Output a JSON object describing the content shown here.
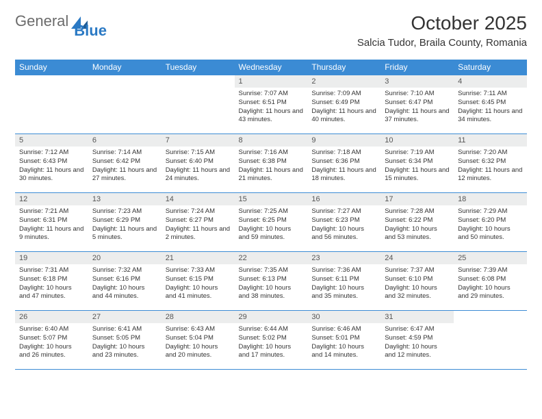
{
  "logo": {
    "text_general": "General",
    "text_blue": "Blue"
  },
  "title": "October 2025",
  "location": "Salcia Tudor, Braila County, Romania",
  "colors": {
    "header_bg": "#3b8bd4",
    "header_text": "#ffffff",
    "daynum_bg": "#eceded",
    "border": "#3b8bd4",
    "logo_gray": "#6b6b6b",
    "logo_blue": "#2a79c4"
  },
  "weekdays": [
    "Sunday",
    "Monday",
    "Tuesday",
    "Wednesday",
    "Thursday",
    "Friday",
    "Saturday"
  ],
  "weeks": [
    [
      {
        "empty": true
      },
      {
        "empty": true
      },
      {
        "empty": true
      },
      {
        "n": "1",
        "sr": "7:07 AM",
        "ss": "6:51 PM",
        "dl": "11 hours and 43 minutes."
      },
      {
        "n": "2",
        "sr": "7:09 AM",
        "ss": "6:49 PM",
        "dl": "11 hours and 40 minutes."
      },
      {
        "n": "3",
        "sr": "7:10 AM",
        "ss": "6:47 PM",
        "dl": "11 hours and 37 minutes."
      },
      {
        "n": "4",
        "sr": "7:11 AM",
        "ss": "6:45 PM",
        "dl": "11 hours and 34 minutes."
      }
    ],
    [
      {
        "n": "5",
        "sr": "7:12 AM",
        "ss": "6:43 PM",
        "dl": "11 hours and 30 minutes."
      },
      {
        "n": "6",
        "sr": "7:14 AM",
        "ss": "6:42 PM",
        "dl": "11 hours and 27 minutes."
      },
      {
        "n": "7",
        "sr": "7:15 AM",
        "ss": "6:40 PM",
        "dl": "11 hours and 24 minutes."
      },
      {
        "n": "8",
        "sr": "7:16 AM",
        "ss": "6:38 PM",
        "dl": "11 hours and 21 minutes."
      },
      {
        "n": "9",
        "sr": "7:18 AM",
        "ss": "6:36 PM",
        "dl": "11 hours and 18 minutes."
      },
      {
        "n": "10",
        "sr": "7:19 AM",
        "ss": "6:34 PM",
        "dl": "11 hours and 15 minutes."
      },
      {
        "n": "11",
        "sr": "7:20 AM",
        "ss": "6:32 PM",
        "dl": "11 hours and 12 minutes."
      }
    ],
    [
      {
        "n": "12",
        "sr": "7:21 AM",
        "ss": "6:31 PM",
        "dl": "11 hours and 9 minutes."
      },
      {
        "n": "13",
        "sr": "7:23 AM",
        "ss": "6:29 PM",
        "dl": "11 hours and 5 minutes."
      },
      {
        "n": "14",
        "sr": "7:24 AM",
        "ss": "6:27 PM",
        "dl": "11 hours and 2 minutes."
      },
      {
        "n": "15",
        "sr": "7:25 AM",
        "ss": "6:25 PM",
        "dl": "10 hours and 59 minutes."
      },
      {
        "n": "16",
        "sr": "7:27 AM",
        "ss": "6:23 PM",
        "dl": "10 hours and 56 minutes."
      },
      {
        "n": "17",
        "sr": "7:28 AM",
        "ss": "6:22 PM",
        "dl": "10 hours and 53 minutes."
      },
      {
        "n": "18",
        "sr": "7:29 AM",
        "ss": "6:20 PM",
        "dl": "10 hours and 50 minutes."
      }
    ],
    [
      {
        "n": "19",
        "sr": "7:31 AM",
        "ss": "6:18 PM",
        "dl": "10 hours and 47 minutes."
      },
      {
        "n": "20",
        "sr": "7:32 AM",
        "ss": "6:16 PM",
        "dl": "10 hours and 44 minutes."
      },
      {
        "n": "21",
        "sr": "7:33 AM",
        "ss": "6:15 PM",
        "dl": "10 hours and 41 minutes."
      },
      {
        "n": "22",
        "sr": "7:35 AM",
        "ss": "6:13 PM",
        "dl": "10 hours and 38 minutes."
      },
      {
        "n": "23",
        "sr": "7:36 AM",
        "ss": "6:11 PM",
        "dl": "10 hours and 35 minutes."
      },
      {
        "n": "24",
        "sr": "7:37 AM",
        "ss": "6:10 PM",
        "dl": "10 hours and 32 minutes."
      },
      {
        "n": "25",
        "sr": "7:39 AM",
        "ss": "6:08 PM",
        "dl": "10 hours and 29 minutes."
      }
    ],
    [
      {
        "n": "26",
        "sr": "6:40 AM",
        "ss": "5:07 PM",
        "dl": "10 hours and 26 minutes."
      },
      {
        "n": "27",
        "sr": "6:41 AM",
        "ss": "5:05 PM",
        "dl": "10 hours and 23 minutes."
      },
      {
        "n": "28",
        "sr": "6:43 AM",
        "ss": "5:04 PM",
        "dl": "10 hours and 20 minutes."
      },
      {
        "n": "29",
        "sr": "6:44 AM",
        "ss": "5:02 PM",
        "dl": "10 hours and 17 minutes."
      },
      {
        "n": "30",
        "sr": "6:46 AM",
        "ss": "5:01 PM",
        "dl": "10 hours and 14 minutes."
      },
      {
        "n": "31",
        "sr": "6:47 AM",
        "ss": "4:59 PM",
        "dl": "10 hours and 12 minutes."
      },
      {
        "empty": true
      }
    ]
  ],
  "labels": {
    "sunrise": "Sunrise:",
    "sunset": "Sunset:",
    "daylight": "Daylight:"
  }
}
